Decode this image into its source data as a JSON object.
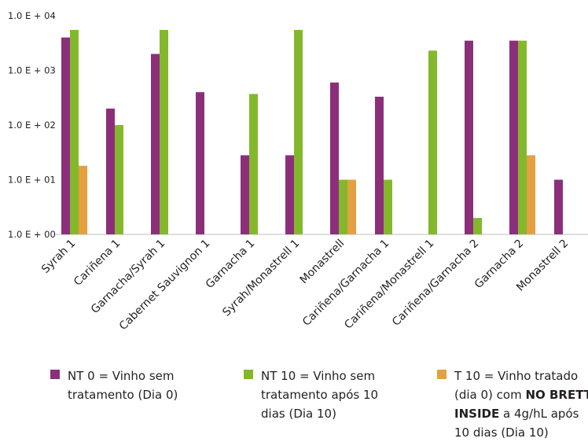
{
  "chart_data": {
    "type": "bar",
    "y_scale": "log",
    "ylim": [
      1,
      10000
    ],
    "y_ticks": [
      "1.0 E + 04",
      "1.0 E + 03",
      "1.0 E + 02",
      "1.0 E + 01",
      "1.0 E + 00"
    ],
    "categories": [
      "Syrah 1",
      "Cariñena 1",
      "Garnacha/Syrah 1",
      "Cabernet Sauvignon 1",
      "Garnacha 1",
      "Syrah/Monastrell 1",
      "Monastrell",
      "Cariñena/Garnacha 1",
      "Cariñena/Monastrell 1",
      "Cariñena/Garnacha 2",
      "Garnacha 2",
      "Monastrell 2"
    ],
    "series": [
      {
        "color": "#8c2f7b",
        "values": [
          4000,
          200,
          2000,
          400,
          28,
          28,
          600,
          330,
          null,
          3500,
          3500,
          10
        ]
      },
      {
        "color": "#84b82c",
        "values": [
          5500,
          100,
          5500,
          null,
          370,
          5500,
          10,
          10,
          2300,
          2,
          3500,
          null
        ]
      },
      {
        "color": "#e5a042",
        "values": [
          18,
          null,
          null,
          null,
          null,
          null,
          10,
          null,
          null,
          null,
          28,
          null
        ]
      }
    ],
    "grid": false,
    "legend_position": "bottom"
  },
  "legend": [
    {
      "color": "#8c2f7b",
      "lines": [
        [
          "NT 0 = Vinho sem"
        ],
        [
          "tratamento (Dia  0)"
        ]
      ]
    },
    {
      "color": "#84b82c",
      "lines": [
        [
          "NT 10 = Vinho sem"
        ],
        [
          "tratamento após 10"
        ],
        [
          "dias (Dia 10)"
        ]
      ]
    },
    {
      "color": "#e5a042",
      "lines": [
        [
          "T 10 = Vinho tratado"
        ],
        [
          "(dia 0) com ",
          "NO BRETT"
        ],
        [
          "INSIDE",
          " a 4g/hL após"
        ],
        [
          "10 dias (Dia 10)"
        ]
      ]
    }
  ]
}
